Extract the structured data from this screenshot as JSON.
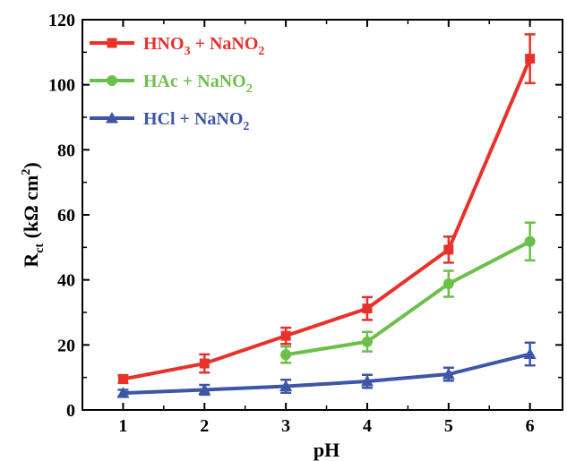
{
  "chart_data": {
    "type": "line",
    "xlabel": "pH",
    "ylabel_main": "R",
    "ylabel_sub": "ct",
    "ylabel_unit": " (kΩ cm",
    "ylabel_sup": "2",
    "ylabel_close": ")",
    "xlim": [
      0.5,
      6.4
    ],
    "ylim": [
      0,
      120
    ],
    "x_ticks": [
      1,
      2,
      3,
      4,
      5,
      6
    ],
    "y_ticks": [
      0,
      20,
      40,
      60,
      80,
      100,
      120
    ],
    "legend_position": "top-left",
    "grid": false,
    "series": [
      {
        "name": "HNO3 + NaNO2",
        "legend_parts": [
          [
            "HNO",
            ""
          ],
          [
            "3",
            "sub"
          ],
          [
            " + NaNO",
            ""
          ],
          [
            "2",
            "sub"
          ]
        ],
        "color": "#e8312a",
        "marker": "square",
        "x": [
          1,
          2,
          3,
          4,
          5,
          6
        ],
        "y": [
          9.5,
          14.3,
          22.8,
          31.2,
          49.3,
          108.0
        ],
        "err": [
          1.2,
          2.8,
          2.5,
          3.5,
          4.0,
          7.5
        ]
      },
      {
        "name": "HAc + NaNO2",
        "legend_parts": [
          [
            "HAc + NaNO",
            ""
          ],
          [
            "2",
            "sub"
          ]
        ],
        "color": "#6cc04a",
        "marker": "circle",
        "x": [
          3,
          4,
          5,
          6
        ],
        "y": [
          17.0,
          21.0,
          38.8,
          51.8
        ],
        "err": [
          2.5,
          3.0,
          4.0,
          5.8
        ]
      },
      {
        "name": "HCl + NaNO2",
        "legend_parts": [
          [
            "HCl + NaNO",
            ""
          ],
          [
            "2",
            "sub"
          ]
        ],
        "color": "#3d56a6",
        "marker": "triangle",
        "x": [
          1,
          2,
          3,
          4,
          5,
          6
        ],
        "y": [
          5.2,
          6.2,
          7.3,
          8.8,
          11.0,
          17.2
        ],
        "err": [
          1.0,
          1.5,
          2.0,
          2.0,
          2.0,
          3.5
        ]
      }
    ]
  }
}
